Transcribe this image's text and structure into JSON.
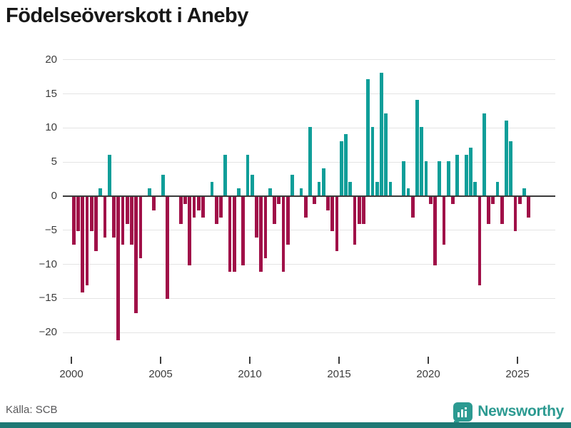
{
  "title": "Födelseöverskott i Aneby",
  "source": "Källa: SCB",
  "brand": {
    "name": "Newsworthy",
    "icon": "bar-chart-marker-icon",
    "color": "#2c9a91"
  },
  "colors": {
    "positive_bar": "#0f9e99",
    "negative_bar": "#a01048",
    "gridline": "#e4e4e4",
    "zero_axis": "#3a3a3a",
    "bottom_band": "#1d7874"
  },
  "chart_data": {
    "type": "bar",
    "title": "Födelseöverskott i Aneby",
    "xlabel": "",
    "ylabel": "",
    "frequency": "quarterly",
    "start_year": 2000,
    "start_quarter": 1,
    "ylim": [
      -22,
      21
    ],
    "grid": true,
    "y_ticks": [
      20,
      15,
      10,
      5,
      0,
      -5,
      -10,
      -15,
      -20
    ],
    "y_tick_labels": [
      "20",
      "15",
      "10",
      "5",
      "0",
      "−5",
      "−10",
      "−15",
      "−20"
    ],
    "x_tick_years": [
      2000,
      2005,
      2010,
      2015,
      2020,
      2025
    ],
    "x_tick_labels": [
      "2000",
      "2005",
      "2010",
      "2015",
      "2020",
      "2025"
    ],
    "series": [
      {
        "name": "Födelseöverskott",
        "values": [
          -7,
          -5,
          -14,
          -13,
          -5,
          -8,
          1,
          -6,
          6,
          -6,
          -21,
          -7,
          -4,
          -7,
          -17,
          -9,
          0,
          1,
          -2,
          0,
          3,
          -15,
          0,
          0,
          -4,
          -1,
          -10,
          -3,
          -2,
          -3,
          0,
          2,
          -4,
          -3,
          6,
          -11,
          -11,
          1,
          -10,
          6,
          3,
          -6,
          -11,
          -9,
          1,
          -4,
          -1,
          -11,
          -7,
          3,
          0,
          1,
          -3,
          10,
          -1,
          2,
          4,
          -2,
          -5,
          -8,
          8,
          9,
          2,
          -7,
          -4,
          -4,
          17,
          10,
          2,
          18,
          12,
          2,
          0,
          0,
          5,
          1,
          -3,
          14,
          10,
          5,
          -1,
          -10,
          5,
          -7,
          5,
          -1,
          6,
          0,
          6,
          7,
          2,
          -13,
          12,
          -4,
          -1,
          2,
          -4,
          11,
          8,
          -5,
          -1,
          1,
          -3
        ]
      }
    ]
  }
}
